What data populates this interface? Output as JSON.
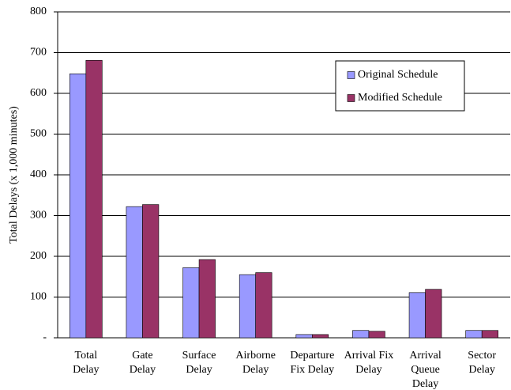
{
  "chart_data": {
    "type": "bar",
    "y_label": "Total Delays (x 1,000 minutes)",
    "categories": [
      [
        "Total",
        "Delay"
      ],
      [
        "Gate",
        "Delay"
      ],
      [
        "Surface",
        "Delay"
      ],
      [
        "Airborne",
        "Delay"
      ],
      [
        "Departure",
        "Fix Delay"
      ],
      [
        "Arrival Fix",
        "Delay"
      ],
      [
        "Arrival",
        "Queue",
        "Delay"
      ],
      [
        "Sector",
        "Delay"
      ]
    ],
    "series": [
      {
        "name": "Original Schedule",
        "color": "#9999ff",
        "values": [
          648,
          322,
          172,
          155,
          8,
          18,
          111,
          18
        ]
      },
      {
        "name": "Modified Schedule",
        "color": "#993366",
        "values": [
          681,
          327,
          192,
          160,
          8,
          16,
          119,
          18
        ]
      }
    ],
    "ylim": [
      0,
      800
    ],
    "yticks": [
      {
        "value": 0,
        "label": "-"
      },
      100,
      200,
      300,
      400,
      500,
      600,
      700,
      800
    ],
    "grid": true,
    "legend": "upper-right"
  }
}
